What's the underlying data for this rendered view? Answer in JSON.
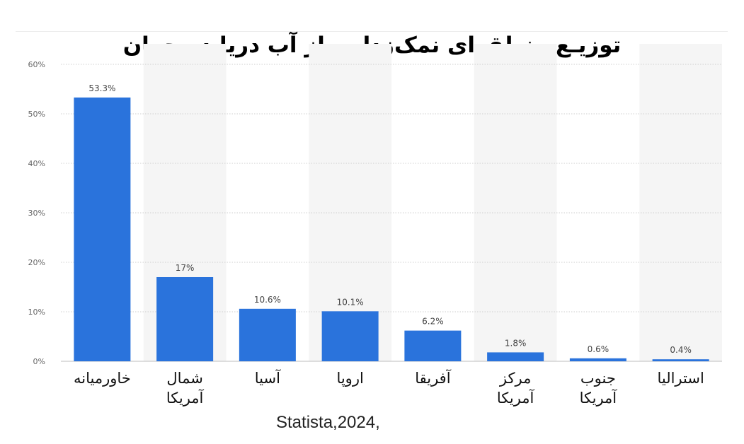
{
  "title": "توزیـع منطقه‌ای نمک‌زدایی از آب دریا در جهان",
  "source": "Statista,2024,",
  "chart_data": {
    "type": "bar",
    "categories": [
      "خاورمیانه",
      "شمال آمریکا",
      "آسیا",
      "اروپا",
      "آفریقا",
      "مرکز آمریکا",
      "جنوب آمریکا",
      "استرالیا"
    ],
    "category_lines": [
      [
        "خاورمیانه"
      ],
      [
        "شمال",
        "آمریکا"
      ],
      [
        "آسیا"
      ],
      [
        "اروپا"
      ],
      [
        "آفریقا"
      ],
      [
        "مرکز",
        "آمریکا"
      ],
      [
        "جنوب",
        "آمریکا"
      ],
      [
        "استرالیا"
      ]
    ],
    "values": [
      53.3,
      17,
      10.6,
      10.1,
      6.2,
      1.8,
      0.6,
      0.4
    ],
    "value_labels": [
      "53.3%",
      "17%",
      "10.6%",
      "10.1%",
      "6.2%",
      "1.8%",
      "0.6%",
      "0.4%"
    ],
    "yticks": [
      "0%",
      "10%",
      "20%",
      "30%",
      "40%",
      "50%",
      "60%"
    ],
    "ylim": [
      0,
      60
    ],
    "xlabel": "",
    "ylabel": "",
    "grid": true,
    "bar_color": "#2a73dc",
    "alt_band_color": "#f5f5f5"
  }
}
